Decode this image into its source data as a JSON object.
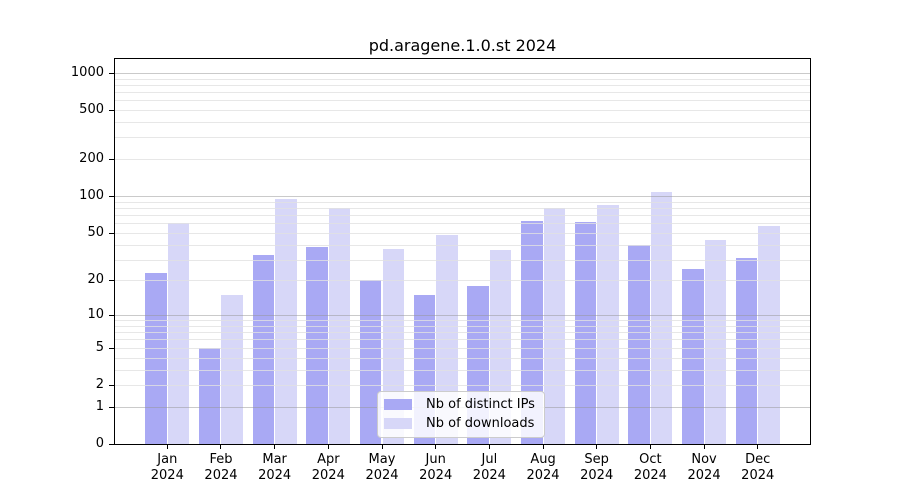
{
  "chart_data": {
    "type": "bar",
    "title": "pd.aragene.1.0.st 2024",
    "xlabel": "",
    "ylabel": "",
    "y_scale": "log1p",
    "ylim": [
      0,
      1296
    ],
    "grid": true,
    "y_ticks": [
      0,
      1,
      2,
      5,
      10,
      20,
      50,
      100,
      200,
      500,
      1000
    ],
    "x_categories": [
      {
        "month": "Jan",
        "year": "2024"
      },
      {
        "month": "Feb",
        "year": "2024"
      },
      {
        "month": "Mar",
        "year": "2024"
      },
      {
        "month": "Apr",
        "year": "2024"
      },
      {
        "month": "May",
        "year": "2024"
      },
      {
        "month": "Jun",
        "year": "2024"
      },
      {
        "month": "Jul",
        "year": "2024"
      },
      {
        "month": "Aug",
        "year": "2024"
      },
      {
        "month": "Sep",
        "year": "2024"
      },
      {
        "month": "Oct",
        "year": "2024"
      },
      {
        "month": "Nov",
        "year": "2024"
      },
      {
        "month": "Dec",
        "year": "2024"
      }
    ],
    "series": [
      {
        "name": "Nb of distinct IPs",
        "color": "#a9a9f4",
        "values": [
          23,
          5,
          33,
          38,
          20,
          15,
          18,
          62,
          61,
          40,
          25,
          31
        ]
      },
      {
        "name": "Nb of downloads",
        "color": "#d7d7f8",
        "values": [
          60,
          15,
          95,
          80,
          37,
          48,
          36,
          80,
          85,
          108,
          44,
          57
        ]
      }
    ],
    "legend": {
      "position": "lower center",
      "entries": [
        "Nb of distinct IPs",
        "Nb of downloads"
      ]
    }
  },
  "colors": {
    "background": "#ffffff",
    "frame": "#000000",
    "major_grid": "#c8c8c8",
    "minor_grid": "#e9e9e9",
    "text": "#000000",
    "legend_border": "#cccccc",
    "bar_ips": "#a9a9f4",
    "bar_downloads": "#d7d7f8"
  }
}
